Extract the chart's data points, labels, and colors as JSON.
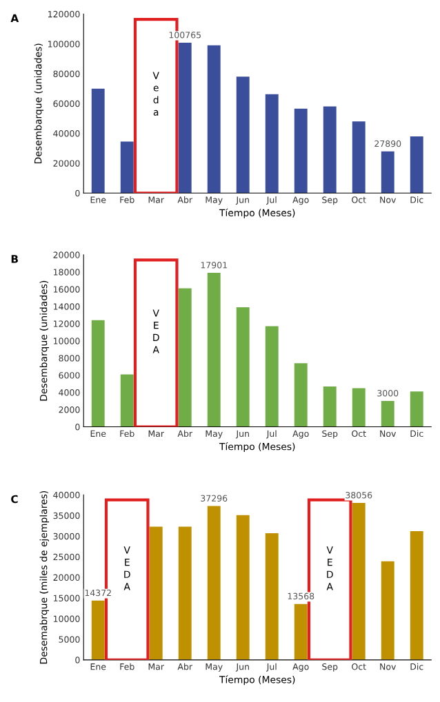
{
  "chart_data": [
    {
      "type": "bar",
      "title": "A",
      "xlabel": "Tíempo (Meses)",
      "ylabel": "Desembarque (unidades)",
      "categories": [
        "Ene",
        "Feb",
        "Mar",
        "Abr",
        "May",
        "Jun",
        "Jul",
        "Ago",
        "Sep",
        "Oct",
        "Nov",
        "Dic"
      ],
      "values": [
        70000,
        34500,
        null,
        100765,
        99000,
        78000,
        66300,
        56600,
        58100,
        48000,
        27890,
        38000
      ],
      "value_labels": [
        null,
        null,
        null,
        "100765",
        null,
        null,
        null,
        null,
        null,
        null,
        "27890",
        null
      ],
      "color": "#3a4e9c",
      "ylim": [
        0,
        120000
      ],
      "yticks": [
        0,
        20000,
        40000,
        60000,
        80000,
        100000,
        120000
      ],
      "grid": false,
      "annotations": [
        "Veda"
      ]
    },
    {
      "type": "bar",
      "title": "B",
      "xlabel": "Tíempo (Meses)",
      "ylabel": "Desembarque (unidades)",
      "categories": [
        "Ene",
        "Feb",
        "Mar",
        "Abr",
        "May",
        "Jun",
        "Jul",
        "Ago",
        "Sep",
        "Oct",
        "Nov",
        "Dic"
      ],
      "values": [
        12400,
        6100,
        null,
        16100,
        17901,
        13900,
        11700,
        7400,
        4700,
        4500,
        3000,
        4100
      ],
      "value_labels": [
        null,
        null,
        null,
        null,
        "17901",
        null,
        null,
        null,
        null,
        null,
        "3000",
        null
      ],
      "color": "#70ad47",
      "ylim": [
        0,
        20000
      ],
      "yticks": [
        0,
        2000,
        4000,
        6000,
        8000,
        10000,
        12000,
        14000,
        16000,
        18000,
        20000
      ],
      "grid": false,
      "annotations": [
        "VEDA"
      ]
    },
    {
      "type": "bar",
      "title": "C",
      "xlabel": "Tíempo (Meses)",
      "ylabel": "Desemabrque (miles de ejemplares)",
      "categories": [
        "Ene",
        "Feb",
        "Mar",
        "Abr",
        "May",
        "Jun",
        "Jul",
        "Ago",
        "Sep",
        "Oct",
        "Nov",
        "Dic"
      ],
      "values": [
        14372,
        null,
        32300,
        32300,
        37296,
        35100,
        30700,
        13568,
        null,
        38056,
        23900,
        31200
      ],
      "value_labels": [
        "14372",
        null,
        null,
        null,
        "37296",
        null,
        null,
        "13568",
        null,
        "38056",
        null,
        null
      ],
      "color": "#bf9000",
      "ylim": [
        0,
        40000
      ],
      "yticks": [
        0,
        5000,
        10000,
        15000,
        20000,
        25000,
        30000,
        35000,
        40000
      ],
      "grid": false,
      "annotations": [
        "VEDA",
        "VEDA"
      ]
    }
  ]
}
